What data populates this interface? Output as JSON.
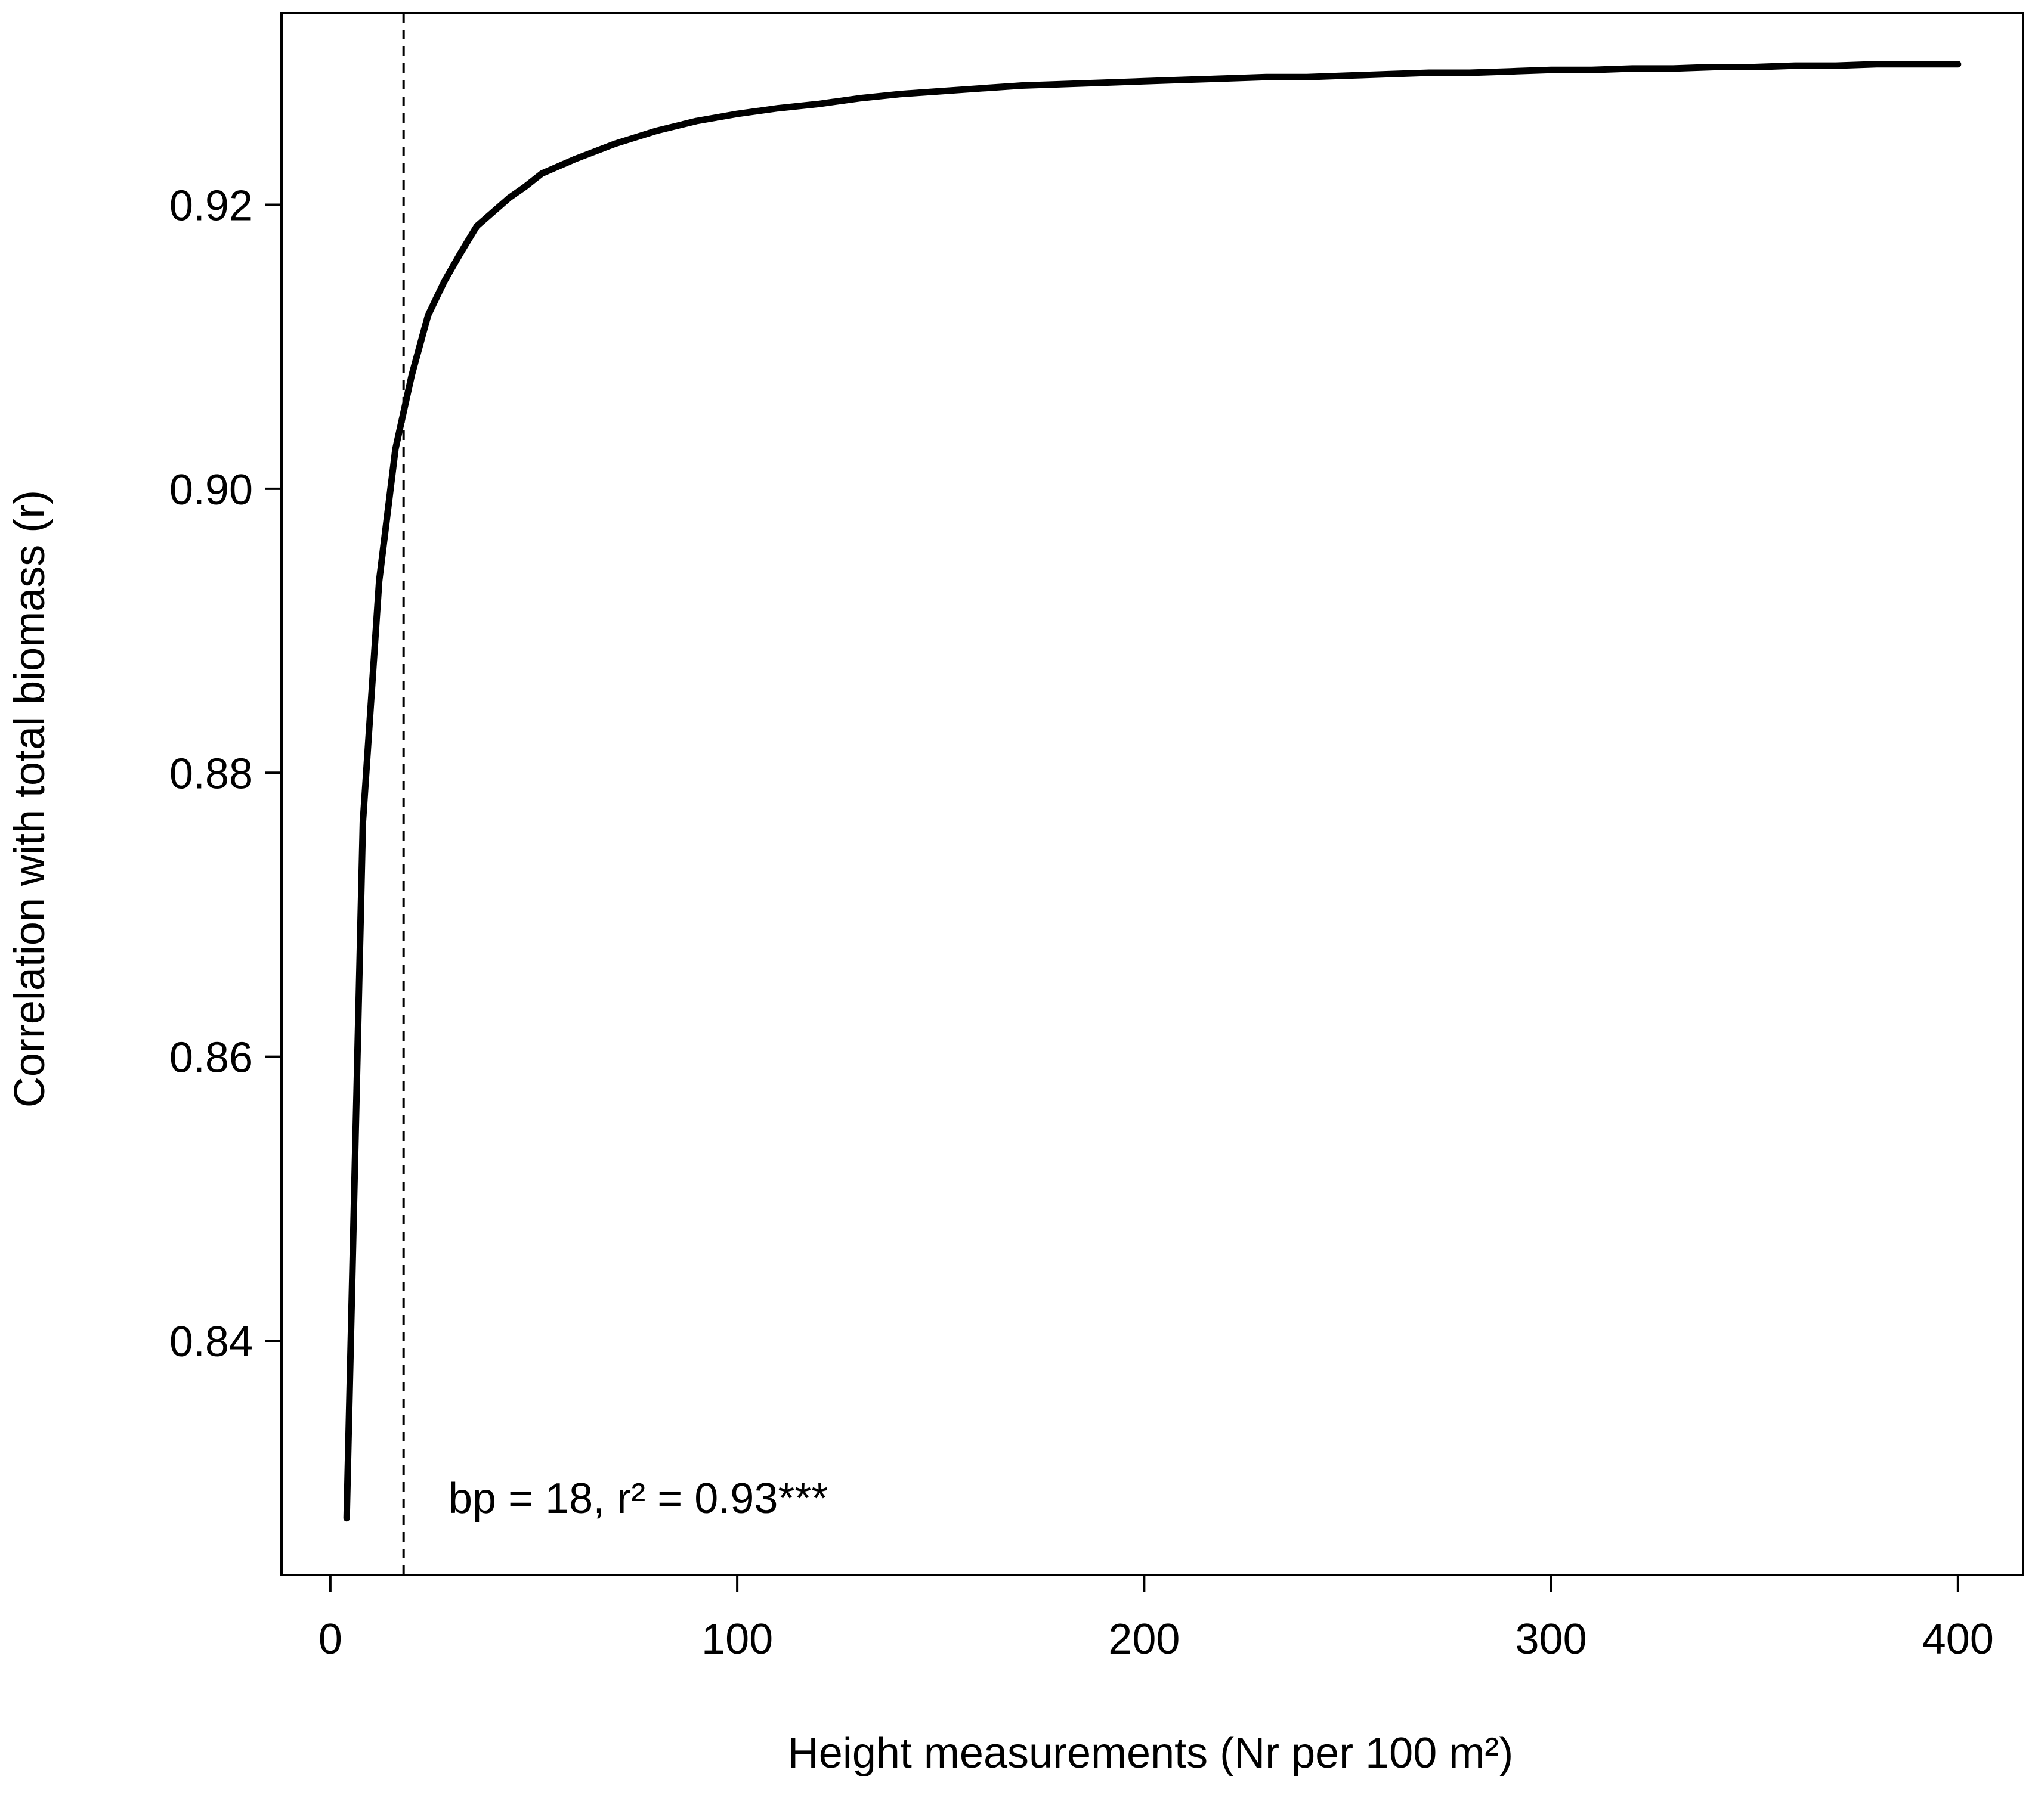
{
  "chart_data": {
    "type": "line",
    "xlabel": "Height measurements (Nr per 100 m²)",
    "ylabel": "Correlation with total biomass (r)",
    "xlim": [
      -12,
      416
    ],
    "ylim": [
      0.8235,
      0.9335
    ],
    "x_ticks": [
      0,
      100,
      200,
      300,
      400
    ],
    "x_tick_labels": [
      "0",
      "100",
      "200",
      "300",
      "400"
    ],
    "y_ticks": [
      0.84,
      0.86,
      0.88,
      0.9,
      0.92
    ],
    "y_tick_labels": [
      "0.84",
      "0.86",
      "0.88",
      "0.90",
      "0.92"
    ],
    "grid": false,
    "line_color": "#000000",
    "breakpoint_x": 18,
    "annotation": "bp = 18, r² = 0.93***",
    "series": [
      {
        "x": [
          4,
          8,
          12,
          16,
          20,
          24,
          28,
          32,
          36,
          40,
          44,
          48,
          52,
          56,
          60,
          70,
          80,
          90,
          100,
          110,
          120,
          130,
          140,
          150,
          160,
          170,
          180,
          190,
          200,
          210,
          220,
          230,
          240,
          250,
          260,
          270,
          280,
          290,
          300,
          310,
          320,
          330,
          340,
          350,
          360,
          370,
          380,
          390,
          400
        ],
        "y": [
          0.8275,
          0.8765,
          0.8935,
          0.9028,
          0.908,
          0.9122,
          0.9146,
          0.9166,
          0.9185,
          0.9195,
          0.9205,
          0.9213,
          0.9222,
          0.9227,
          0.9232,
          0.9243,
          0.9252,
          0.9259,
          0.9264,
          0.9268,
          0.9271,
          0.9275,
          0.9278,
          0.928,
          0.9282,
          0.9284,
          0.9285,
          0.9286,
          0.9287,
          0.9288,
          0.9289,
          0.929,
          0.929,
          0.9291,
          0.9292,
          0.9293,
          0.9293,
          0.9294,
          0.9295,
          0.9295,
          0.9296,
          0.9296,
          0.9297,
          0.9297,
          0.9298,
          0.9298,
          0.9299,
          0.9299,
          0.9299
        ]
      }
    ]
  }
}
